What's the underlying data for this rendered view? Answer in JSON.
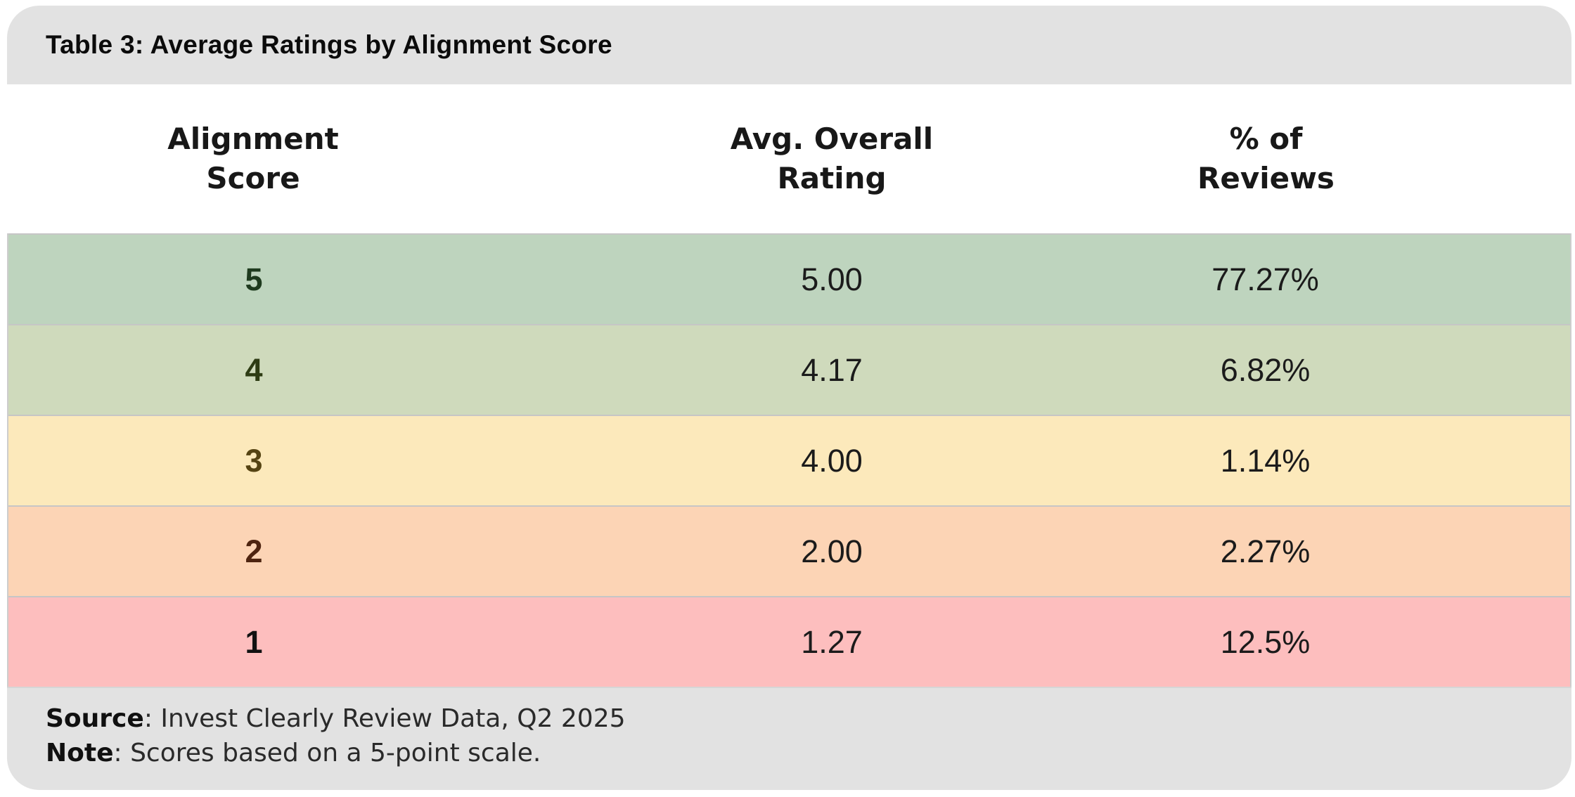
{
  "title": "Table 3: Average Ratings by Alignment Score",
  "table": {
    "headers": [
      {
        "line1": "Alignment",
        "line2": "Score"
      },
      {
        "line1": "Avg. Overall",
        "line2": "Rating"
      },
      {
        "line1": "% of",
        "line2": "Reviews"
      }
    ],
    "rows": [
      {
        "score": "5",
        "rating": "5.00",
        "pct": "77.27%",
        "row_bg": "#bed4be",
        "score_color": "#1e3a1e"
      },
      {
        "score": "4",
        "rating": "4.17",
        "pct": "6.82%",
        "row_bg": "#cfdabc",
        "score_color": "#2e3c14"
      },
      {
        "score": "3",
        "rating": "4.00",
        "pct": "1.14%",
        "row_bg": "#fce9bb",
        "score_color": "#554312"
      },
      {
        "score": "2",
        "rating": "2.00",
        "pct": "2.27%",
        "row_bg": "#fcd4b5",
        "score_color": "#4e2410"
      },
      {
        "score": "1",
        "rating": "1.27",
        "pct": "12.5%",
        "row_bg": "#fdbebe",
        "score_color": "#121212"
      }
    ]
  },
  "footer": {
    "source_label": "Source",
    "source_text": ": Invest Clearly Review Data, Q2 2025",
    "note_label": "Note",
    "note_text": ": Scores based on a 5-point scale."
  },
  "colors": {
    "panel_bg": "#e2e2e2",
    "separator": "#c6c6c6",
    "row5_bg": "#bed4be",
    "row4_bg": "#cfdabc",
    "row3_bg": "#fce9bb",
    "row2_bg": "#fcd4b5",
    "row1_bg": "#fdbebe"
  },
  "chart_data": {
    "type": "table",
    "title": "Table 3: Average Ratings by Alignment Score",
    "columns": [
      "Alignment Score",
      "Avg. Overall Rating",
      "% of Reviews"
    ],
    "rows": [
      [
        5,
        5.0,
        "77.27%"
      ],
      [
        4,
        4.17,
        "6.82%"
      ],
      [
        3,
        4.0,
        "1.14%"
      ],
      [
        2,
        2.0,
        "2.27%"
      ],
      [
        1,
        1.27,
        "12.5%"
      ]
    ],
    "source": "Invest Clearly Review Data, Q2 2025",
    "note": "Scores based on a 5-point scale."
  }
}
